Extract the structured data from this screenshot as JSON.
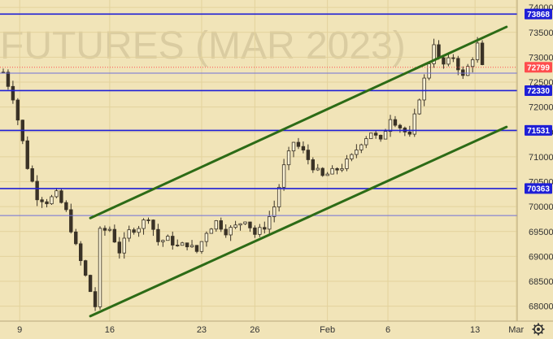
{
  "chart_data": {
    "type": "candlestick",
    "watermark": "FUTURES (MAR 2023)",
    "title": "",
    "xlabel": "",
    "ylabel": "",
    "x_ticks": [
      "9",
      "16",
      "23",
      "26",
      "Feb",
      "6",
      "13",
      "Mar"
    ],
    "y_ticks": [
      68000,
      68500,
      69000,
      69500,
      70000,
      70500,
      71000,
      71500,
      72000,
      72500,
      73000,
      73500,
      74000
    ],
    "ylim": [
      67700,
      74150
    ],
    "last_price": 72799,
    "horizontal_levels": [
      73868,
      72330,
      71531,
      70363
    ],
    "unlabeled_levels": [
      72680,
      69820
    ],
    "channel_lines": [
      {
        "name": "upper channel",
        "from": {
          "bar": 18,
          "price": 69770
        },
        "to": {
          "bar": 104,
          "price": 73610
        }
      },
      {
        "name": "lower channel",
        "from": {
          "bar": 18,
          "price": 67800
        },
        "to": {
          "bar": 104,
          "price": 71600
        }
      }
    ],
    "close_path": [
      [
        0,
        72700
      ],
      [
        2,
        72200
      ],
      [
        4,
        71300
      ],
      [
        5,
        70800
      ],
      [
        7,
        70200
      ],
      [
        9,
        70100
      ],
      [
        11,
        70250
      ],
      [
        13,
        69900
      ],
      [
        15,
        69200
      ],
      [
        17,
        68600
      ],
      [
        19,
        68000
      ],
      [
        20,
        69500
      ],
      [
        22,
        69550
      ],
      [
        24,
        69100
      ],
      [
        26,
        69500
      ],
      [
        28,
        69600
      ],
      [
        30,
        69800
      ],
      [
        32,
        69300
      ],
      [
        34,
        69350
      ],
      [
        36,
        69200
      ],
      [
        38,
        69250
      ],
      [
        40,
        69100
      ],
      [
        42,
        69500
      ],
      [
        44,
        69700
      ],
      [
        46,
        69500
      ],
      [
        48,
        69600
      ],
      [
        50,
        69750
      ],
      [
        52,
        69450
      ],
      [
        54,
        69600
      ],
      [
        56,
        70000
      ],
      [
        58,
        70800
      ],
      [
        60,
        71300
      ],
      [
        62,
        71100
      ],
      [
        64,
        70800
      ],
      [
        66,
        70600
      ],
      [
        68,
        70700
      ],
      [
        70,
        70800
      ],
      [
        72,
        71000
      ],
      [
        74,
        71300
      ],
      [
        76,
        71500
      ],
      [
        78,
        71300
      ],
      [
        80,
        71800
      ],
      [
        82,
        71600
      ],
      [
        84,
        71400
      ],
      [
        86,
        72200
      ],
      [
        88,
        72900
      ],
      [
        89,
        73300
      ],
      [
        90,
        72950
      ],
      [
        91,
        72850
      ],
      [
        93,
        73000
      ],
      [
        95,
        72600
      ],
      [
        96,
        72800
      ],
      [
        97,
        73000
      ],
      [
        98,
        73250
      ],
      [
        99,
        72800
      ]
    ],
    "colors": {
      "background": "#f1e4b8",
      "candle": "#3a3226",
      "level_line": "#1f1fd6",
      "channel": "#2c6b16",
      "last_price": "#ff4d4d"
    }
  }
}
